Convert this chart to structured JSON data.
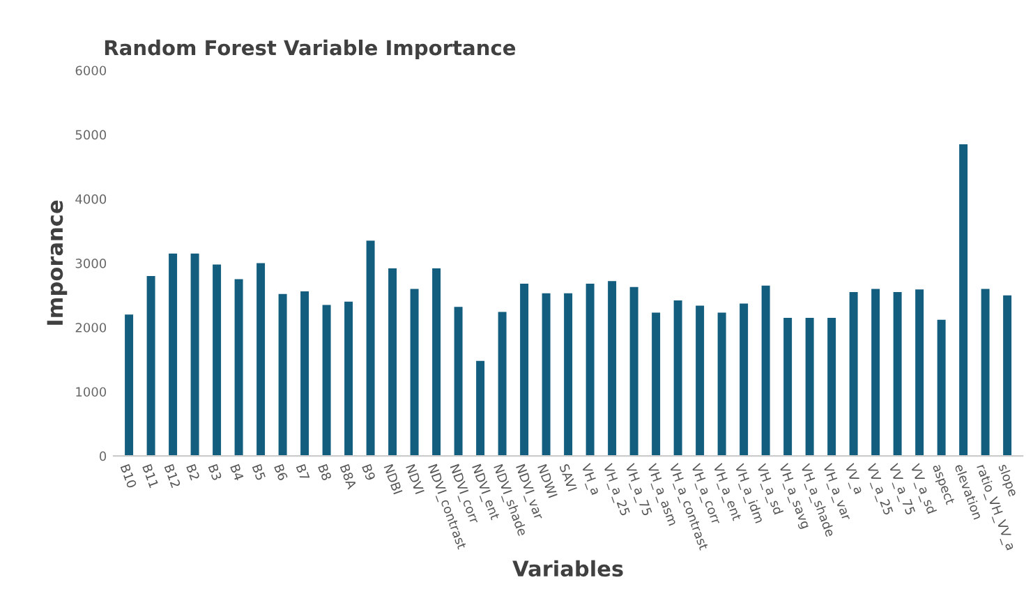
{
  "chart_data": {
    "type": "bar",
    "title": "Random Forest Variable Importance",
    "xlabel": "Variables",
    "ylabel": "Imporance",
    "categories": [
      "B10",
      "B11",
      "B12",
      "B2",
      "B3",
      "B4",
      "B5",
      "B6",
      "B7",
      "B8",
      "B8A",
      "B9",
      "NDBI",
      "NDVI",
      "NDVI_contrast",
      "NDVI_corr",
      "NDVI_ent",
      "NDVI_shade",
      "NDVI_var",
      "NDWI",
      "SAVI",
      "VH_a",
      "VH_a_25",
      "VH_a_75",
      "VH_a_asm",
      "VH_a_contrast",
      "VH_a_corr",
      "VH_a_ent",
      "VH_a_idm",
      "VH_a_sd",
      "VH_a_savg",
      "VH_a_shade",
      "VH_a_var",
      "VV_a",
      "VV_a_25",
      "VV_a_75",
      "VV_a_sd",
      "aspect",
      "elevation",
      "ratio_VH_VV_a",
      "slope"
    ],
    "values": [
      2200,
      2800,
      3150,
      3150,
      2980,
      2750,
      3000,
      2520,
      2560,
      2350,
      2400,
      3350,
      2920,
      2600,
      2920,
      2320,
      1480,
      2240,
      2680,
      2530,
      2530,
      2680,
      2720,
      2630,
      2230,
      2420,
      2340,
      2230,
      2370,
      2650,
      2150,
      2150,
      2150,
      2550,
      2600,
      2550,
      2590,
      2120,
      4850,
      2600,
      2500
    ],
    "color": "#135e7f",
    "ylim": [
      0,
      6000
    ],
    "yticks": [
      0,
      1000,
      2000,
      3000,
      4000,
      5000,
      6000
    ],
    "grid": false
  }
}
